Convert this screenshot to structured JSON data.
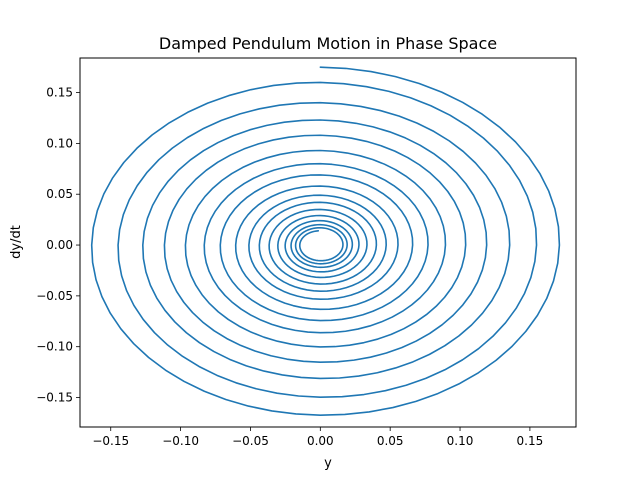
{
  "chart_data": {
    "type": "line",
    "title": "Damped Pendulum Motion in Phase Space",
    "xlabel": "y",
    "ylabel": "dy/dt",
    "xlim": [
      -0.172,
      0.183
    ],
    "ylim": [
      -0.179,
      0.184
    ],
    "grid": false,
    "xticks": [
      -0.15,
      -0.1,
      -0.05,
      0.0,
      0.05,
      0.1,
      0.15
    ],
    "xtick_labels": [
      "−0.15",
      "−0.10",
      "−0.05",
      "0.00",
      "0.05",
      "0.10",
      "0.15"
    ],
    "yticks": [
      -0.15,
      -0.1,
      -0.05,
      0.0,
      0.05,
      0.1,
      0.15
    ],
    "ytick_labels": [
      "−0.15",
      "−0.10",
      "−0.05",
      "0.00",
      "0.05",
      "0.10",
      "0.15"
    ],
    "series": [
      {
        "color": "#1f77b4",
        "spiral": {
          "start_y": 0.0,
          "start_dydt": 0.175,
          "turn_radii": [
            0.175,
            0.16,
            0.14,
            0.123,
            0.108,
            0.093,
            0.08,
            0.069,
            0.058,
            0.049,
            0.042,
            0.035,
            0.029,
            0.024,
            0.02,
            0.017,
            0.014
          ]
        }
      }
    ]
  }
}
